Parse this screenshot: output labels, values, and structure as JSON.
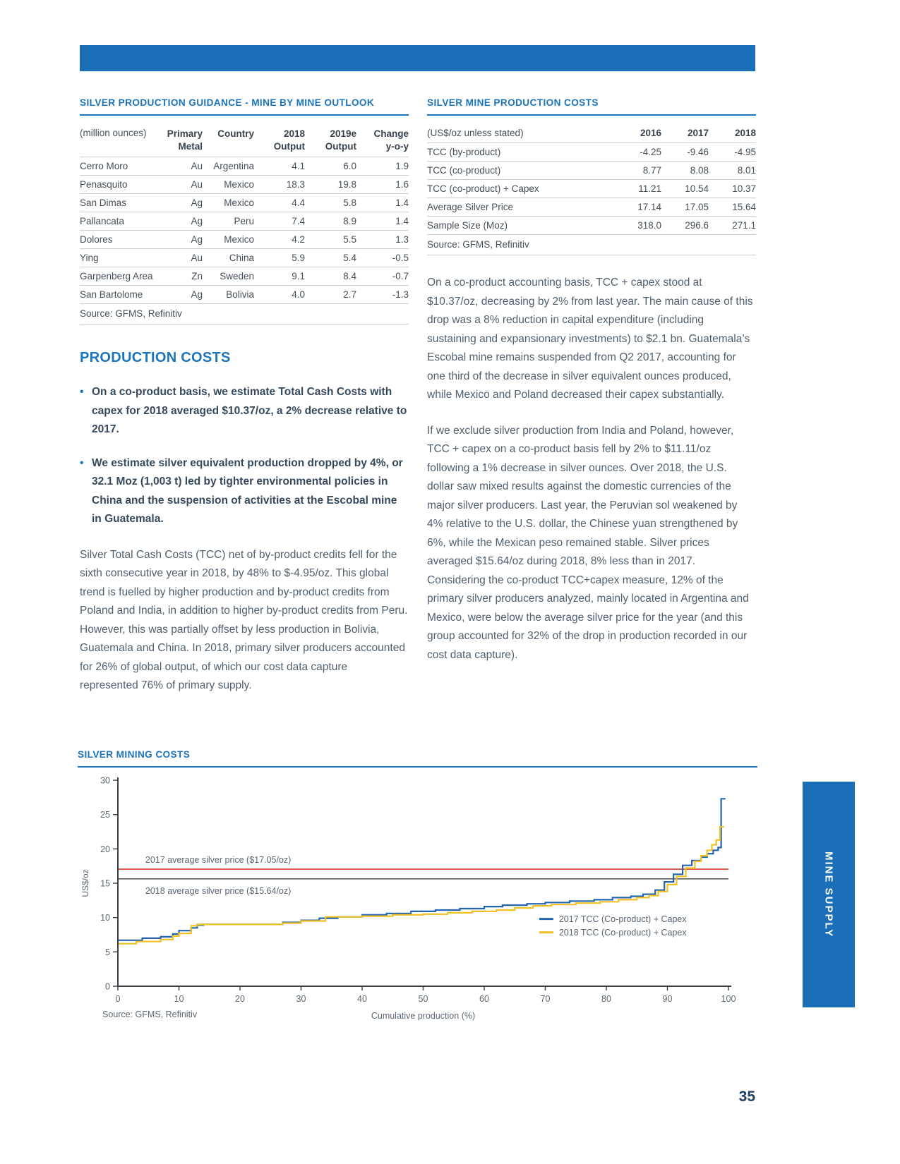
{
  "page": {
    "number": "35",
    "side_tab": "MINE SUPPLY"
  },
  "colors": {
    "brand_blue": "#1b6fb8",
    "heading_blue": "#1c75bc",
    "series_2017": "#2565ae",
    "series_2018": "#f0c125",
    "ref_2017": "#d63a32",
    "ref_2018": "#5a5c5e"
  },
  "left_table": {
    "title": "SILVER PRODUCTION GUIDANCE - MINE BY MINE OUTLOOK",
    "unit_header": "(million ounces)",
    "col_headers": [
      "Primary\nMetal",
      "Country",
      "2018\nOutput",
      "2019e\nOutput",
      "Change\ny-o-y"
    ],
    "rows": [
      [
        "Cerro Moro",
        "Au",
        "Argentina",
        "4.1",
        "6.0",
        "1.9"
      ],
      [
        "Penasquito",
        "Au",
        "Mexico",
        "18.3",
        "19.8",
        "1.6"
      ],
      [
        "San Dimas",
        "Ag",
        "Mexico",
        "4.4",
        "5.8",
        "1.4"
      ],
      [
        "Pallancata",
        "Ag",
        "Peru",
        "7.4",
        "8.9",
        "1.4"
      ],
      [
        "Dolores",
        "Ag",
        "Mexico",
        "4.2",
        "5.5",
        "1.3"
      ],
      [
        "Ying",
        "Au",
        "China",
        "5.9",
        "5.4",
        "-0.5"
      ],
      [
        "Garpenberg Area",
        "Zn",
        "Sweden",
        "9.1",
        "8.4",
        "-0.7"
      ],
      [
        "San Bartolome",
        "Ag",
        "Bolivia",
        "4.0",
        "2.7",
        "-1.3"
      ]
    ],
    "source": "Source: GFMS, Refinitiv"
  },
  "production_costs": {
    "heading": "PRODUCTION COSTS",
    "bullets": [
      "On a co-product basis, we estimate Total Cash Costs with capex for 2018 averaged $10.37/oz, a 2% decrease relative to 2017.",
      "We estimate silver equivalent production dropped by 4%, or 32.1 Moz (1,003 t) led by tighter environmental policies in China and the suspension of activities at the Escobal mine in Guatemala."
    ],
    "paragraph": "Silver Total Cash Costs (TCC) net of by-product credits fell for the sixth consecutive year in 2018, by 48% to $-4.95/oz. This global trend is fuelled by higher production and by-product credits from Poland and India, in addition to higher by-product credits from Peru. However, this was partially offset by less production in Bolivia, Guatemala and China. In 2018, primary silver producers accounted for 26% of global output, of which our cost data capture represented 76% of primary supply."
  },
  "right_table": {
    "title": "SILVER MINE PRODUCTION COSTS",
    "unit_header": "(US$/oz unless stated)",
    "col_headers": [
      "2016",
      "2017",
      "2018"
    ],
    "rows": [
      [
        "TCC (by-product)",
        "-4.25",
        "-9.46",
        "-4.95"
      ],
      [
        "TCC (co-product)",
        "8.77",
        "8.08",
        "8.01"
      ],
      [
        "TCC (co-product) + Capex",
        "11.21",
        "10.54",
        "10.37"
      ],
      [
        "Average Silver Price",
        "17.14",
        "17.05",
        "15.64"
      ],
      [
        "Sample Size (Moz)",
        "318.0",
        "296.6",
        "271.1"
      ]
    ],
    "source": "Source: GFMS, Refinitiv"
  },
  "right_paragraphs": [
    "On a co-product accounting basis, TCC + capex stood at $10.37/oz, decreasing by 2% from last year. The main cause of this drop was a 8% reduction in capital expenditure (including sustaining and expansionary investments) to $2.1 bn. Guatemala’s Escobal mine remains suspended from Q2 2017, accounting for one third of the decrease in silver equivalent ounces produced, while Mexico and Poland decreased their capex substantially.",
    "If we exclude silver production from India and Poland, however, TCC + capex on a co-product basis fell by 2% to $11.11/oz following a 1% decrease in silver ounces. Over 2018, the U.S. dollar saw mixed results against the domestic currencies of the major silver producers. Last year, the Peruvian sol weakened by 4% relative to the U.S. dollar, the Chinese yuan strengthened by 6%, while the Mexican peso remained stable. Silver prices averaged $15.64/oz during 2018, 8% less than in 2017. Considering the co-product TCC+capex measure, 12% of the primary silver producers analyzed, mainly located in Argentina and Mexico, were below the average silver price for the year (and this group accounted for 32% of the drop in production recorded in our cost data capture)."
  ],
  "chart": {
    "title": "SILVER MINING COSTS",
    "source": "Source: GFMS, Refinitiv"
  },
  "chart_data": {
    "type": "line",
    "title": "SILVER MINING COSTS",
    "xlabel": "Cumulative production (%)",
    "ylabel": "US$/oz",
    "xlim": [
      0,
      100
    ],
    "ylim": [
      0,
      30
    ],
    "xticks": [
      0,
      10,
      20,
      30,
      40,
      50,
      60,
      70,
      80,
      90,
      100
    ],
    "yticks": [
      0,
      5,
      10,
      15,
      20,
      25,
      30
    ],
    "grid": false,
    "legend_position": "right-middle",
    "reference_lines": [
      {
        "label": "2017 average silver price ($17.05/oz)",
        "value": 17.05,
        "color": "#d63a32",
        "label_position": "above"
      },
      {
        "label": "2018 average silver price ($15.64/oz)",
        "value": 15.64,
        "color": "#5a5c5e",
        "label_position": "below"
      }
    ],
    "series": [
      {
        "name": "2017 TCC (Co-product) + Capex",
        "color": "#2565ae",
        "step": true,
        "points": [
          [
            0,
            6.7
          ],
          [
            4,
            6.7
          ],
          [
            4,
            7.0
          ],
          [
            7,
            7.0
          ],
          [
            7,
            7.2
          ],
          [
            9,
            7.2
          ],
          [
            9,
            7.6
          ],
          [
            10,
            7.6
          ],
          [
            10,
            8.1
          ],
          [
            12,
            8.1
          ],
          [
            12,
            8.5
          ],
          [
            13,
            8.5
          ],
          [
            13,
            8.9
          ],
          [
            14,
            8.9
          ],
          [
            14,
            9.0
          ],
          [
            27,
            9.0
          ],
          [
            27,
            9.3
          ],
          [
            30,
            9.3
          ],
          [
            30,
            9.6
          ],
          [
            33,
            9.6
          ],
          [
            33,
            9.9
          ],
          [
            36,
            9.9
          ],
          [
            36,
            10.1
          ],
          [
            40,
            10.1
          ],
          [
            40,
            10.4
          ],
          [
            44,
            10.4
          ],
          [
            44,
            10.6
          ],
          [
            48,
            10.6
          ],
          [
            48,
            10.9
          ],
          [
            52,
            10.9
          ],
          [
            52,
            11.1
          ],
          [
            56,
            11.1
          ],
          [
            56,
            11.3
          ],
          [
            60,
            11.3
          ],
          [
            60,
            11.6
          ],
          [
            63,
            11.6
          ],
          [
            63,
            11.8
          ],
          [
            67,
            11.8
          ],
          [
            67,
            12.0
          ],
          [
            70,
            12.0
          ],
          [
            70,
            12.2
          ],
          [
            74,
            12.2
          ],
          [
            74,
            12.4
          ],
          [
            78,
            12.4
          ],
          [
            78,
            12.6
          ],
          [
            81,
            12.6
          ],
          [
            81,
            12.9
          ],
          [
            84,
            12.9
          ],
          [
            84,
            13.1
          ],
          [
            86,
            13.1
          ],
          [
            86,
            13.4
          ],
          [
            88,
            13.4
          ],
          [
            88,
            14.0
          ],
          [
            89.5,
            14.0
          ],
          [
            89.5,
            15.2
          ],
          [
            91,
            15.2
          ],
          [
            91,
            16.3
          ],
          [
            92.5,
            16.3
          ],
          [
            92.5,
            17.6
          ],
          [
            94,
            17.6
          ],
          [
            94,
            18.3
          ],
          [
            95.5,
            18.3
          ],
          [
            95.5,
            18.8
          ],
          [
            96.5,
            18.8
          ],
          [
            96.5,
            19.3
          ],
          [
            97.5,
            19.3
          ],
          [
            97.5,
            19.8
          ],
          [
            98.3,
            19.8
          ],
          [
            98.3,
            20.2
          ],
          [
            98.8,
            20.2
          ],
          [
            98.8,
            27.3
          ],
          [
            99.5,
            27.3
          ]
        ]
      },
      {
        "name": "2018 TCC (Co-product) + Capex",
        "color": "#f0c125",
        "step": true,
        "points": [
          [
            0,
            6.2
          ],
          [
            3,
            6.2
          ],
          [
            3,
            6.5
          ],
          [
            7,
            6.5
          ],
          [
            7,
            6.8
          ],
          [
            9,
            6.8
          ],
          [
            9,
            7.3
          ],
          [
            10,
            7.3
          ],
          [
            10,
            7.7
          ],
          [
            12,
            7.7
          ],
          [
            12,
            8.8
          ],
          [
            13,
            8.8
          ],
          [
            13,
            9.0
          ],
          [
            27,
            9.0
          ],
          [
            27,
            9.2
          ],
          [
            30,
            9.2
          ],
          [
            30,
            9.5
          ],
          [
            34,
            9.5
          ],
          [
            34,
            10.1
          ],
          [
            40,
            10.1
          ],
          [
            40,
            10.2
          ],
          [
            45,
            10.2
          ],
          [
            45,
            10.4
          ],
          [
            50,
            10.4
          ],
          [
            50,
            10.5
          ],
          [
            54,
            10.5
          ],
          [
            54,
            10.7
          ],
          [
            58,
            10.7
          ],
          [
            58,
            10.9
          ],
          [
            62,
            10.9
          ],
          [
            62,
            11.1
          ],
          [
            65,
            11.1
          ],
          [
            65,
            11.4
          ],
          [
            68,
            11.4
          ],
          [
            68,
            11.7
          ],
          [
            71,
            11.7
          ],
          [
            71,
            11.9
          ],
          [
            75,
            11.9
          ],
          [
            75,
            12.1
          ],
          [
            79,
            12.1
          ],
          [
            79,
            12.3
          ],
          [
            82,
            12.3
          ],
          [
            82,
            12.6
          ],
          [
            85,
            12.6
          ],
          [
            85,
            12.9
          ],
          [
            87,
            12.9
          ],
          [
            87,
            13.2
          ],
          [
            88.5,
            13.2
          ],
          [
            88.5,
            13.8
          ],
          [
            90,
            13.8
          ],
          [
            90,
            14.8
          ],
          [
            91.5,
            14.8
          ],
          [
            91.5,
            16.0
          ],
          [
            93,
            16.0
          ],
          [
            93,
            17.2
          ],
          [
            94.5,
            17.2
          ],
          [
            94.5,
            18.2
          ],
          [
            95.5,
            18.2
          ],
          [
            95.5,
            19.0
          ],
          [
            96.5,
            19.0
          ],
          [
            96.5,
            19.8
          ],
          [
            97.3,
            19.8
          ],
          [
            97.3,
            20.6
          ],
          [
            98,
            20.6
          ],
          [
            98,
            21.3
          ],
          [
            98.6,
            21.3
          ],
          [
            98.6,
            23.2
          ],
          [
            99.3,
            23.2
          ]
        ]
      }
    ]
  }
}
